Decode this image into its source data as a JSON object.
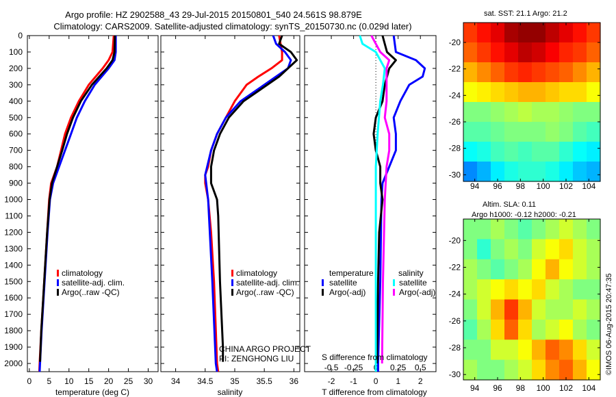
{
  "title": {
    "line1": "Argo profile: HZ 2902588_43 29-Jul-2015 20150801_540 24.561S 98.879E",
    "line2": "Climatology: CARS2009. Satellite-adjusted climatology: synTS_20150730.nc (0.029d later)"
  },
  "credit": {
    "project": "CHINA ARGO PROJECT",
    "pi": "PI: ZENGHONG LIU",
    "stamp": "©IMOS 06-Aug-2015 20:47:35"
  },
  "colors": {
    "climatology": "#ff0000",
    "satellite": "#0000ff",
    "argo": "#000000",
    "s_satellite": "#00ffff",
    "s_argo": "#ff00ff"
  },
  "chart_data": [
    {
      "type": "line",
      "xlabel": "temperature (deg C)",
      "xlim": [
        -0.5,
        32.5
      ],
      "xticks": [
        0,
        5,
        10,
        15,
        20,
        25,
        30
      ],
      "ylim": [
        2050,
        0
      ],
      "yticks": [
        0,
        100,
        200,
        300,
        400,
        500,
        600,
        700,
        800,
        900,
        1000,
        1100,
        1200,
        1300,
        1400,
        1500,
        1600,
        1700,
        1800,
        1900,
        2000
      ],
      "legend": [
        "climatology",
        "satellite-adj. clim.",
        "Argo(..raw -QC)"
      ],
      "series": [
        {
          "name": "climatology",
          "color": "#ff0000",
          "points": [
            [
              0,
              21.3
            ],
            [
              100,
              21.0
            ],
            [
              150,
              20.0
            ],
            [
              200,
              18.5
            ],
            [
              300,
              15.0
            ],
            [
              400,
              12.5
            ],
            [
              500,
              10.5
            ],
            [
              600,
              9.0
            ],
            [
              700,
              8.0
            ],
            [
              800,
              7.0
            ],
            [
              900,
              5.5
            ],
            [
              1000,
              5.0
            ],
            [
              1200,
              4.5
            ],
            [
              1400,
              4.0
            ],
            [
              1600,
              3.5
            ],
            [
              1800,
              3.0
            ],
            [
              2000,
              2.6
            ],
            [
              2050,
              2.5
            ]
          ]
        },
        {
          "name": "satellite-adj. clim.",
          "color": "#0000ff",
          "points": [
            [
              0,
              21.8
            ],
            [
              100,
              21.8
            ],
            [
              150,
              21.5
            ],
            [
              200,
              20.0
            ],
            [
              300,
              16.5
            ],
            [
              400,
              14.0
            ],
            [
              500,
              12.0
            ],
            [
              600,
              10.5
            ],
            [
              700,
              9.0
            ],
            [
              800,
              7.5
            ],
            [
              900,
              6.0
            ],
            [
              1000,
              5.2
            ],
            [
              1200,
              4.6
            ],
            [
              1400,
              4.1
            ],
            [
              1600,
              3.6
            ],
            [
              1800,
              3.1
            ],
            [
              2000,
              2.7
            ],
            [
              2050,
              2.6
            ]
          ]
        },
        {
          "name": "Argo(..raw -QC)",
          "color": "#000000",
          "points": [
            [
              0,
              21.6
            ],
            [
              100,
              21.5
            ],
            [
              150,
              21.0
            ],
            [
              200,
              19.5
            ],
            [
              300,
              15.8
            ],
            [
              400,
              13.0
            ],
            [
              500,
              11.0
            ],
            [
              600,
              9.5
            ],
            [
              700,
              8.3
            ],
            [
              800,
              7.0
            ],
            [
              900,
              5.7
            ],
            [
              1000,
              5.1
            ],
            [
              1200,
              4.5
            ],
            [
              1400,
              4.0
            ],
            [
              1600,
              3.5
            ],
            [
              1800,
              3.0
            ],
            [
              1990,
              2.7
            ]
          ]
        }
      ]
    },
    {
      "type": "line",
      "xlabel": "salinity",
      "xlim": [
        33.75,
        36.1
      ],
      "xticks": [
        34,
        34.5,
        35,
        35.5,
        36
      ],
      "ylim": [
        2050,
        0
      ],
      "legend": [
        "climatology",
        "satellite-adj. clim.",
        "Argo(..raw -QC)"
      ],
      "series": [
        {
          "name": "climatology",
          "color": "#ff0000",
          "points": [
            [
              0,
              35.75
            ],
            [
              100,
              35.8
            ],
            [
              150,
              35.8
            ],
            [
              200,
              35.62
            ],
            [
              250,
              35.4
            ],
            [
              300,
              35.2
            ],
            [
              400,
              35.0
            ],
            [
              500,
              34.85
            ],
            [
              600,
              34.7
            ],
            [
              700,
              34.6
            ],
            [
              800,
              34.55
            ],
            [
              850,
              34.5
            ],
            [
              900,
              34.5
            ],
            [
              1000,
              34.55
            ],
            [
              1200,
              34.6
            ],
            [
              1500,
              34.65
            ],
            [
              2000,
              34.7
            ],
            [
              2050,
              34.72
            ]
          ]
        },
        {
          "name": "satellite-adj. clim.",
          "color": "#0000ff",
          "points": [
            [
              0,
              35.65
            ],
            [
              50,
              35.7
            ],
            [
              100,
              35.85
            ],
            [
              150,
              35.95
            ],
            [
              200,
              35.9
            ],
            [
              250,
              35.7
            ],
            [
              300,
              35.5
            ],
            [
              400,
              35.1
            ],
            [
              500,
              34.85
            ],
            [
              600,
              34.7
            ],
            [
              700,
              34.6
            ],
            [
              850,
              34.5
            ],
            [
              1000,
              34.55
            ],
            [
              1500,
              34.62
            ],
            [
              2000,
              34.68
            ],
            [
              2050,
              34.7
            ]
          ]
        },
        {
          "name": "Argo(..raw -QC)",
          "color": "#000000",
          "points": [
            [
              0,
              35.8
            ],
            [
              50,
              35.75
            ],
            [
              100,
              35.95
            ],
            [
              150,
              36.05
            ],
            [
              200,
              35.9
            ],
            [
              250,
              35.75
            ],
            [
              300,
              35.55
            ],
            [
              400,
              35.15
            ],
            [
              500,
              34.9
            ],
            [
              600,
              34.75
            ],
            [
              700,
              34.65
            ],
            [
              800,
              34.6
            ],
            [
              900,
              34.6
            ],
            [
              1000,
              34.7
            ],
            [
              1100,
              34.72
            ],
            [
              1500,
              34.75
            ],
            [
              1900,
              34.8
            ],
            [
              1990,
              34.8
            ]
          ]
        }
      ]
    },
    {
      "type": "line",
      "xlabel": "T difference from climatology",
      "xlim": [
        -3.2,
        2.7
      ],
      "xticks": [
        -2,
        -1,
        0,
        1,
        2
      ],
      "x2label": "S difference from climatology",
      "x2ticks": [
        [
          "-0.5",
          -0.5
        ],
        [
          "-0.25",
          -0.25
        ],
        [
          "0",
          0
        ],
        [
          "0.25",
          0.25
        ],
        [
          "0.5",
          0.5
        ]
      ],
      "ylim": [
        2050,
        0
      ],
      "legend": {
        "temperature_title": "temperature",
        "salinity_title": "salinity",
        "t_items": [
          "satellite",
          "Argo(-adj)"
        ],
        "s_items": [
          "satellite",
          "Argo(-adj)"
        ]
      },
      "series": [
        {
          "name": "T satellite",
          "axis": "T",
          "color": "#0000ff",
          "points": [
            [
              0,
              0.8
            ],
            [
              100,
              0.9
            ],
            [
              150,
              1.8
            ],
            [
              200,
              2.2
            ],
            [
              250,
              2.1
            ],
            [
              300,
              1.5
            ],
            [
              400,
              1.1
            ],
            [
              500,
              0.8
            ],
            [
              600,
              0.9
            ],
            [
              700,
              0.9
            ],
            [
              800,
              0.6
            ],
            [
              900,
              0.3
            ],
            [
              1000,
              0.25
            ],
            [
              1500,
              0.2
            ],
            [
              2000,
              0.1
            ],
            [
              2050,
              0.1
            ]
          ]
        },
        {
          "name": "T Argo(-adj)",
          "axis": "T",
          "color": "#000000",
          "points": [
            [
              0,
              0.3
            ],
            [
              100,
              0.5
            ],
            [
              150,
              0.9
            ],
            [
              200,
              0.6
            ],
            [
              300,
              0.4
            ],
            [
              400,
              0.3
            ],
            [
              500,
              0.0
            ],
            [
              600,
              -0.1
            ],
            [
              700,
              0.0
            ],
            [
              800,
              0.2
            ],
            [
              900,
              0.2
            ],
            [
              1000,
              0.3
            ],
            [
              1200,
              0.15
            ],
            [
              1500,
              0.1
            ],
            [
              2000,
              0.05
            ]
          ]
        },
        {
          "name": "S satellite",
          "axis": "S",
          "color": "#00ffff",
          "points": [
            [
              0,
              -0.18
            ],
            [
              50,
              -0.15
            ],
            [
              100,
              0.0
            ],
            [
              150,
              0.05
            ],
            [
              200,
              0.1
            ],
            [
              300,
              0.08
            ],
            [
              400,
              0.05
            ],
            [
              600,
              0.02
            ],
            [
              800,
              0.0
            ],
            [
              1000,
              0.0
            ],
            [
              2000,
              0.0
            ],
            [
              2050,
              0.0
            ]
          ]
        },
        {
          "name": "S Argo(-adj)",
          "axis": "S",
          "color": "#ff00ff",
          "points": [
            [
              0,
              -0.05
            ],
            [
              50,
              0.0
            ],
            [
              100,
              0.05
            ],
            [
              150,
              0.15
            ],
            [
              200,
              0.12
            ],
            [
              300,
              0.12
            ],
            [
              400,
              0.12
            ],
            [
              500,
              0.1
            ],
            [
              600,
              0.15
            ],
            [
              700,
              0.15
            ],
            [
              800,
              0.12
            ],
            [
              1000,
              0.1
            ],
            [
              1500,
              0.08
            ],
            [
              2000,
              0.07
            ]
          ]
        }
      ]
    },
    {
      "type": "heatmap",
      "title": "sat. SST: 21.1 Argo: 21.2",
      "xticks": [
        94,
        96,
        98,
        100,
        102,
        104
      ],
      "yticks": [
        -20,
        -22,
        -24,
        -26,
        -28,
        -30
      ],
      "lon": [
        93,
        105
      ],
      "lat": [
        -18.5,
        -30.5
      ],
      "crange": [
        18.5,
        23.5
      ],
      "grid": [
        [
          22.6,
          22.8,
          23.0,
          23.3,
          23.4,
          23.4,
          23.2,
          23.0,
          22.8,
          22.6
        ],
        [
          22.4,
          22.6,
          22.8,
          23.0,
          23.2,
          23.1,
          22.9,
          22.7,
          22.6,
          22.4
        ],
        [
          22.0,
          22.2,
          22.4,
          22.6,
          22.7,
          22.6,
          22.5,
          22.4,
          22.2,
          22.0
        ],
        [
          21.6,
          21.7,
          21.8,
          21.9,
          22.0,
          22.0,
          21.9,
          21.8,
          21.8,
          21.6
        ],
        [
          21.0,
          21.0,
          21.1,
          21.2,
          21.3,
          21.2,
          21.2,
          21.1,
          21.0,
          21.0
        ],
        [
          20.8,
          20.8,
          20.9,
          21.0,
          21.0,
          21.0,
          21.1,
          21.0,
          20.8,
          20.7
        ],
        [
          20.4,
          20.5,
          20.7,
          20.8,
          20.7,
          20.8,
          20.8,
          20.6,
          20.4,
          20.3
        ],
        [
          19.8,
          20.0,
          20.3,
          20.5,
          20.6,
          20.6,
          20.5,
          20.3,
          20.1,
          20.0
        ]
      ]
    },
    {
      "type": "heatmap",
      "title": "Altim. SLA: 0.11",
      "subtitle": "Argo h1000: -0.12 h2000: -0.21",
      "xticks": [
        94,
        96,
        98,
        100,
        102,
        104
      ],
      "yticks": [
        -20,
        -22,
        -24,
        -26,
        -28,
        -30
      ],
      "lon": [
        93,
        105
      ],
      "lat": [
        -18.4,
        -30.4
      ],
      "crange": [
        -0.25,
        0.25
      ],
      "grid": [
        [
          0,
          0,
          0.02,
          0,
          -0.02,
          0,
          0.02,
          0.04,
          0.02,
          0
        ],
        [
          0,
          -0.04,
          0,
          0.02,
          0,
          0.04,
          0.06,
          0.08,
          0.04,
          0.02
        ],
        [
          0.02,
          0,
          -0.02,
          0,
          0.02,
          0.06,
          0.1,
          0.06,
          0.04,
          0.02
        ],
        [
          0.02,
          0.04,
          0.06,
          0.08,
          0.06,
          0.08,
          0.04,
          0.02,
          0,
          0
        ],
        [
          0,
          0.04,
          0.1,
          0.16,
          0.1,
          0.04,
          0.02,
          0.02,
          0.04,
          0.02
        ],
        [
          -0.02,
          0.02,
          0.08,
          0.14,
          0.08,
          0.02,
          0.04,
          0.06,
          0.02,
          0
        ],
        [
          0,
          0,
          0.04,
          0.04,
          0.06,
          0.1,
          0.14,
          0.12,
          0.08,
          0.04
        ],
        [
          0.02,
          0,
          0,
          0.02,
          0.04,
          0.08,
          0.12,
          0.14,
          0.1,
          0.06
        ]
      ]
    }
  ]
}
